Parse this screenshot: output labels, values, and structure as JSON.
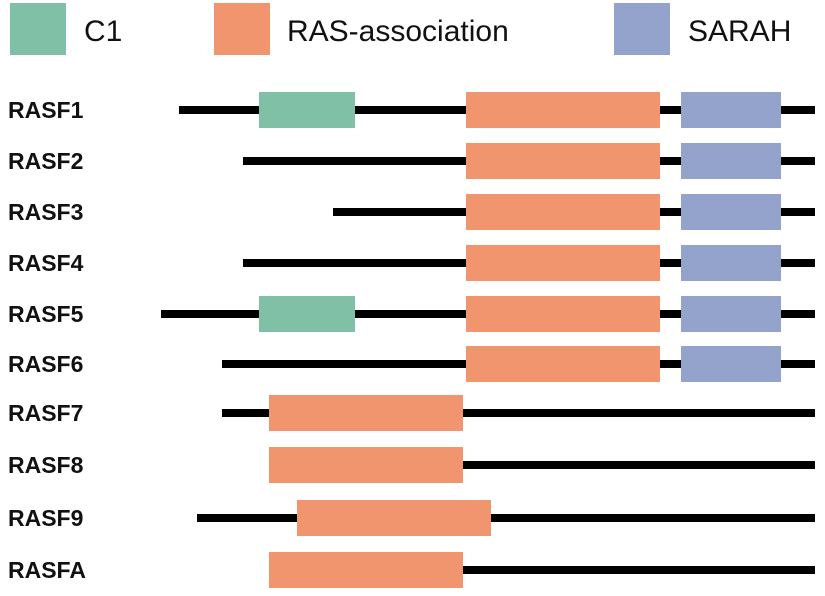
{
  "legend": [
    {
      "key": "C1",
      "label": "C1",
      "color": "#7fc0a6"
    },
    {
      "key": "RA",
      "label": "RAS-association",
      "color": "#f0956e"
    },
    {
      "key": "SARAH",
      "label": "SARAH",
      "color": "#93a3cc"
    }
  ],
  "proteins": [
    {
      "name": "RASF1",
      "domains": [
        "C1",
        "RA",
        "SARAH"
      ]
    },
    {
      "name": "RASF2",
      "domains": [
        "RA",
        "SARAH"
      ]
    },
    {
      "name": "RASF3",
      "domains": [
        "RA",
        "SARAH"
      ]
    },
    {
      "name": "RASF4",
      "domains": [
        "RA",
        "SARAH"
      ]
    },
    {
      "name": "RASF5",
      "domains": [
        "C1",
        "RA",
        "SARAH"
      ]
    },
    {
      "name": "RASF6",
      "domains": [
        "RA",
        "SARAH"
      ]
    },
    {
      "name": "RASF7",
      "domains": [
        "RA"
      ]
    },
    {
      "name": "RASF8",
      "domains": [
        "RA"
      ]
    },
    {
      "name": "RASF9",
      "domains": [
        "RA"
      ]
    },
    {
      "name": "RASFA",
      "domains": [
        "RA"
      ]
    }
  ],
  "backbone_color": "#000000"
}
